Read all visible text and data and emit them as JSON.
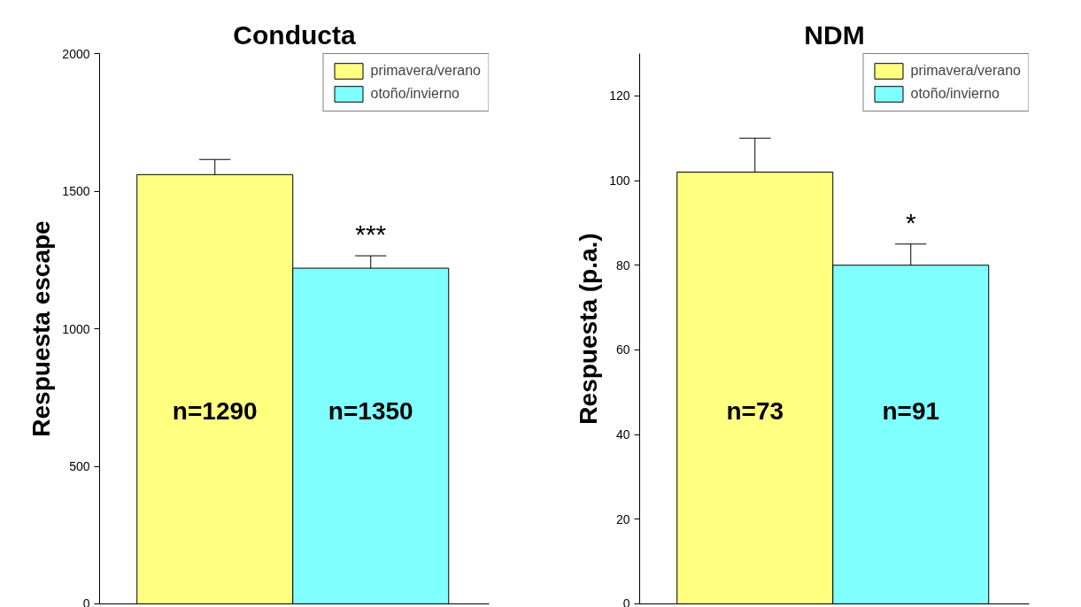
{
  "chart_data": [
    {
      "type": "bar",
      "title": "Conducta",
      "ylabel": "Respuesta escape",
      "categories": [
        null,
        null
      ],
      "series": [
        {
          "name": "primavera/verano",
          "color": "#ffff80",
          "values": [
            1560,
            null
          ],
          "errors": [
            [
              1560,
              1615
            ],
            null
          ]
        },
        {
          "name": "otoño/invierno",
          "color": "#80ffff",
          "values": [
            null,
            1220
          ],
          "errors": [
            null,
            [
              1220,
              1265
            ]
          ]
        }
      ],
      "ylim": [
        0,
        2000
      ],
      "yticks": [
        0,
        500,
        1000,
        1500,
        2000
      ],
      "tick_labels": "y",
      "legend": "top right",
      "annotations": [
        "n=1290",
        "n=1350",
        "***"
      ]
    },
    {
      "type": "bar",
      "title": "NDM",
      "ylabel": "Respuesta (p.a.)",
      "categories": [
        null,
        null
      ],
      "series": [
        {
          "name": "primavera/verano",
          "color": "#ffff80",
          "values": [
            102,
            null
          ],
          "errors": [
            [
              102,
              110
            ],
            null
          ]
        },
        {
          "name": "otoño/invierno",
          "color": "#80ffff",
          "values": [
            null,
            80
          ],
          "errors": [
            null,
            [
              80,
              85
            ]
          ]
        }
      ],
      "ylim": [
        0,
        130
      ],
      "yticks": [
        0,
        20,
        40,
        60,
        80,
        100,
        120
      ],
      "tick_labels": "y",
      "legend": "top right",
      "annotations": [
        "n=73",
        "n=91",
        "*"
      ]
    }
  ]
}
